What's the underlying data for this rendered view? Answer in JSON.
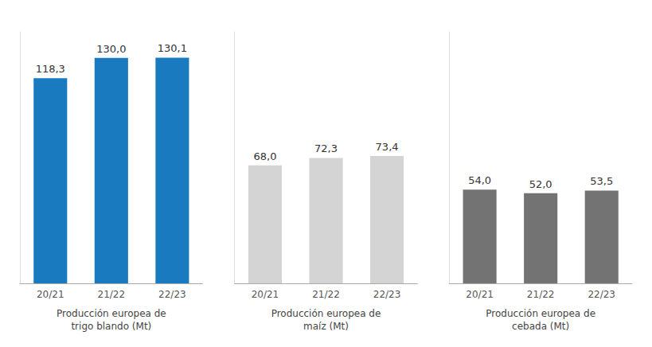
{
  "chart_data": [
    {
      "type": "bar",
      "xlabel": "Producción europea de\ntrigo blando (Mt)",
      "categories": [
        "20/21",
        "21/22",
        "22/23"
      ],
      "values": [
        118.3,
        130.0,
        130.1
      ],
      "value_labels": [
        "118,3",
        "130,0",
        "130,1"
      ],
      "color": "#1a7abf",
      "ylim": [
        0,
        145
      ],
      "tick_labels": "x",
      "data_labels": true,
      "grid": false
    },
    {
      "type": "bar",
      "xlabel": "Producción europea de\nmaíz (Mt)",
      "categories": [
        "20/21",
        "21/22",
        "22/23"
      ],
      "values": [
        68.0,
        72.3,
        73.4
      ],
      "value_labels": [
        "68,0",
        "72,3",
        "73,4"
      ],
      "color": "#d4d4d4",
      "ylim": [
        0,
        145
      ],
      "tick_labels": "x",
      "data_labels": true,
      "grid": false
    },
    {
      "type": "bar",
      "xlabel": "Producción europea de\ncebada (Mt)",
      "categories": [
        "20/21",
        "21/22",
        "22/23"
      ],
      "values": [
        54.0,
        52.0,
        53.5
      ],
      "value_labels": [
        "54,0",
        "52,0",
        "53,5"
      ],
      "color": "#737373",
      "ylim": [
        0,
        145
      ],
      "tick_labels": "x",
      "data_labels": true,
      "grid": false
    }
  ]
}
